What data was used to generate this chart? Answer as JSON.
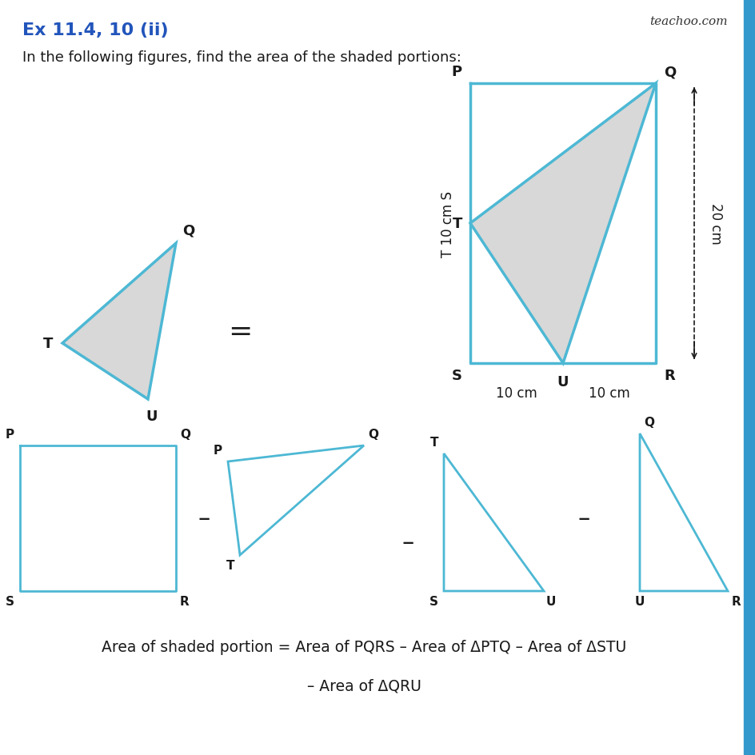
{
  "bg_color": "#ffffff",
  "line_color": "#4db8d4",
  "shade_color": "#d8d8d8",
  "text_color": "#1a1a1a",
  "title_color": "#2255bb",
  "title_text": "Ex 11.4, 10 (ii)",
  "subtitle_text": "In the following figures, find the area of the shaded portions:",
  "teachoo_text": "teachoo.com",
  "formula_line1": "Area of shaded portion = Area of PQRS – Area of ΔPTQ – Area of ΔSTU",
  "formula_line2": "– Area of ΔQRU",
  "left_side_label": "T 10 cm S",
  "right_side_label": "20 cm"
}
